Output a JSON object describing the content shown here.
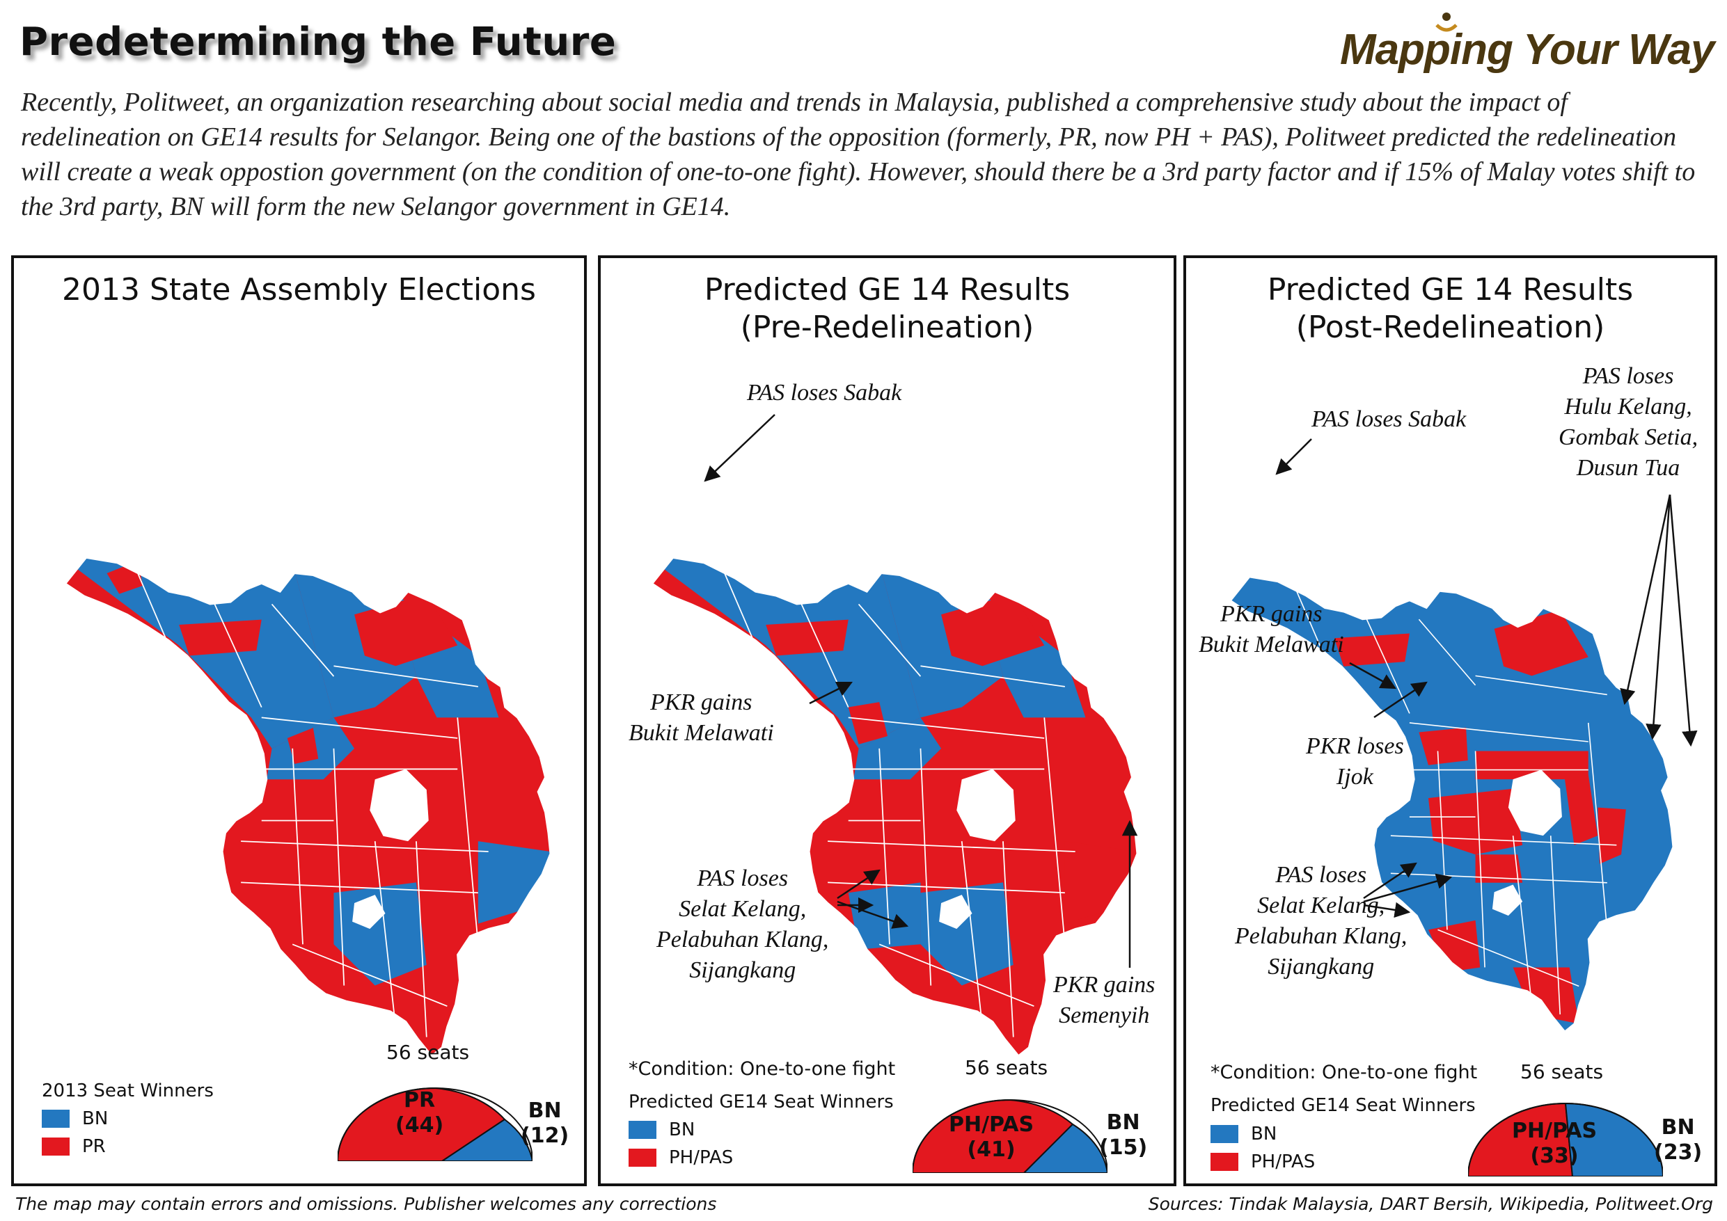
{
  "header": {
    "title": "Predetermining the Future",
    "brand": "Mapping Your Way",
    "intro": "Recently, Politweet, an organization researching about social media and trends in Malaysia, published a comprehensive study about the impact of redelineation on GE14 results for Selangor. Being one of the bastions of the opposition (formerly, PR, now PH + PAS), Politweet predicted the redelineation will create a weak oppostion government (on the condition of one-to-one fight). However, should there be a 3rd party factor and if 15% of Malay votes shift to the 3rd party, BN will form the new Selangor government in GE14."
  },
  "colors": {
    "bn": "#2378c0",
    "pr": "#e3181f",
    "border": "#ffffff",
    "ink": "#111111",
    "brand": "#4a3710"
  },
  "panels": [
    {
      "title_line1": "2013 State Assembly Elections",
      "title_line2": "",
      "annotations": [],
      "condition": "",
      "legend_title": "2013 Seat Winners",
      "legend": [
        {
          "label": "BN",
          "party": "bn"
        },
        {
          "label": "PR",
          "party": "pr"
        }
      ],
      "seats_label": "56 seats",
      "seat_result": {
        "total": 56,
        "red": {
          "name": "PR",
          "count": 44,
          "count_label": "(44)"
        },
        "blue": {
          "name": "BN",
          "count": 12,
          "count_label": "(12)"
        }
      }
    },
    {
      "title_line1": "Predicted GE 14 Results",
      "title_line2": "(Pre-Redelineation)",
      "annotations": [
        {
          "lines": [
            "PAS loses Sabak"
          ]
        },
        {
          "lines": [
            "PKR gains",
            "Bukit Melawati"
          ]
        },
        {
          "lines": [
            "PAS loses",
            "Selat Kelang,",
            "Pelabuhan Klang,",
            "Sijangkang"
          ]
        },
        {
          "lines": [
            "PKR gains",
            "Semenyih"
          ]
        }
      ],
      "condition": "*Condition: One-to-one fight",
      "legend_title": "Predicted GE14 Seat Winners",
      "legend": [
        {
          "label": "BN",
          "party": "bn"
        },
        {
          "label": "PH/PAS",
          "party": "pr"
        }
      ],
      "seats_label": "56 seats",
      "seat_result": {
        "total": 56,
        "red": {
          "name": "PH/PAS",
          "count": 41,
          "count_label": "(41)"
        },
        "blue": {
          "name": "BN",
          "count": 15,
          "count_label": "(15)"
        }
      }
    },
    {
      "title_line1": "Predicted GE 14 Results",
      "title_line2": "(Post-Redelineation)",
      "annotations": [
        {
          "lines": [
            "PAS loses Sabak"
          ]
        },
        {
          "lines": [
            "PAS loses",
            "Hulu Kelang,",
            "Gombak Setia,",
            "Dusun Tua"
          ]
        },
        {
          "lines": [
            "PKR gains",
            "Bukit Melawati"
          ]
        },
        {
          "lines": [
            "PKR loses",
            "Ijok"
          ]
        },
        {
          "lines": [
            "PAS loses",
            "Selat Kelang,",
            "Pelabuhan Klang,",
            "Sijangkang"
          ]
        }
      ],
      "condition": "*Condition: One-to-one fight",
      "legend_title": "Predicted GE14 Seat Winners",
      "legend": [
        {
          "label": "BN",
          "party": "bn"
        },
        {
          "label": "PH/PAS",
          "party": "pr"
        }
      ],
      "seats_label": "56 seats",
      "seat_result": {
        "total": 56,
        "red": {
          "name": "PH/PAS",
          "count": 33,
          "count_label": "(33)"
        },
        "blue": {
          "name": "BN",
          "count": 23,
          "count_label": "(23)"
        }
      }
    }
  ],
  "footer": {
    "left": "The map may contain errors and omissions. Publisher welcomes any corrections",
    "right": "Sources: Tindak Malaysia, DART Bersih, Wikipedia, Politweet.Org"
  }
}
